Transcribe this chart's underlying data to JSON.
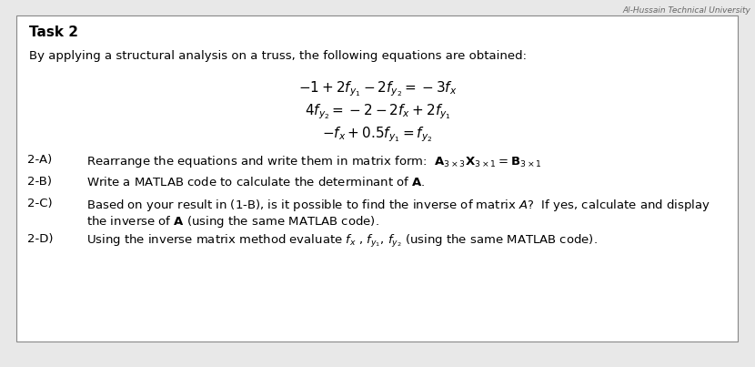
{
  "title": "Task 2",
  "background_color": "#e8e8e8",
  "box_color": "#ffffff",
  "box_edge_color": "#888888",
  "header_text": "Al-Hussain Technical University",
  "intro_text": "By applying a structural analysis on a truss, the following equations are obtained:",
  "eq1": "$-1 + 2f_{y_1} - 2f_{y_2} = -3f_x$",
  "eq2": "$4f_{y_2} = -2 - 2f_x + 2f_{y_1}$",
  "eq3": "$-f_x + 0.5f_{y_1} = f_{y_2}$",
  "item_2A_pre": "Rearrange the equations and write them in matrix form:  ",
  "item_2A_math": "$\\mathbf{A}_{3\\times3}\\mathbf{X}_{3\\times1} = \\mathbf{B}_{3\\times1}$",
  "item_2B": "Write a MATLAB code to calculate the determinant of $\\mathbf{A}$.",
  "item_2C_1": "Based on your result in (1-B), is it possible to find the inverse of matrix $A$?  If yes, calculate and display",
  "item_2C_2": "the inverse of $\\mathbf{A}$ (using the same MATLAB code).",
  "item_2D": "Using the inverse matrix method evaluate $f_x$ , $f_{y_1}$, $f_{y_2}$ (using the same MATLAB code).",
  "label_2A": "2-A)",
  "label_2B": "2-B)",
  "label_2C": "2-C)",
  "label_2D": "2-D)",
  "title_fontsize": 11,
  "body_fontsize": 9.5,
  "eq_fontsize": 11
}
